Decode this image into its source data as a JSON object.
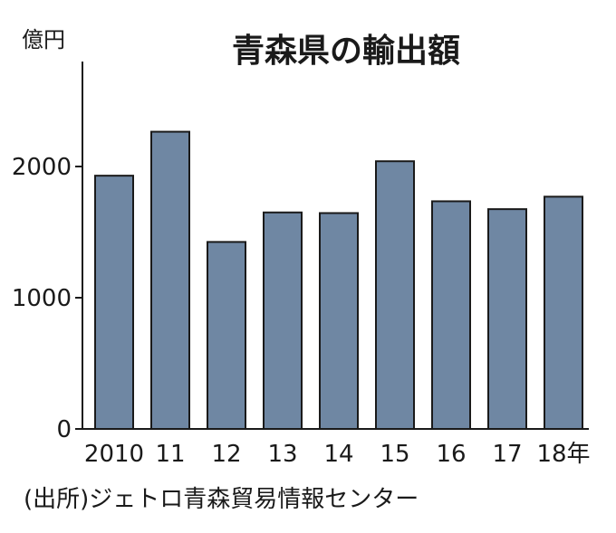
{
  "chart_data": {
    "type": "bar",
    "title": "青森県の輸出額",
    "ylabel": "億円",
    "xlabel": "",
    "categories": [
      "2010",
      "11",
      "12",
      "13",
      "14",
      "15",
      "16",
      "17",
      "18年"
    ],
    "values": [
      1930,
      2265,
      1425,
      1650,
      1645,
      2040,
      1735,
      1675,
      1770
    ],
    "ylim": [
      0,
      2800
    ],
    "yticks": [
      0,
      1000,
      2000
    ],
    "ytick_labels": [
      "0",
      "1000",
      "2000"
    ],
    "grid": false,
    "legend": "none"
  },
  "source": "(出所)ジェトロ青森貿易情報センター",
  "colors": {
    "bar_fill": "#6f87a3",
    "bar_stroke": "#1a1a1a",
    "axis": "#1a1a1a",
    "background": "#ffffff"
  }
}
